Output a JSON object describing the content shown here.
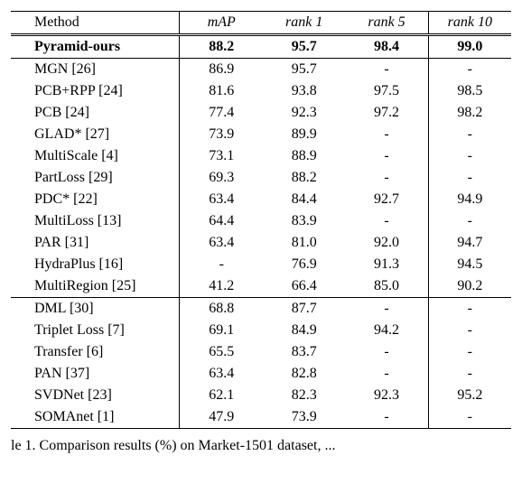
{
  "header": {
    "method": "Method",
    "map": "mAP",
    "r1": "rank 1",
    "r5": "rank 5",
    "r10": "rank 10"
  },
  "groups": [
    {
      "rows": [
        {
          "method": "Pyramid-ours",
          "map": "88.2",
          "r1": "95.7",
          "r5": "98.4",
          "r10": "99.0",
          "bold": true
        }
      ]
    },
    {
      "rows": [
        {
          "method": "MGN [26]",
          "map": "86.9",
          "r1": "95.7",
          "r5": "-",
          "r10": "-"
        },
        {
          "method": "PCB+RPP [24]",
          "map": "81.6",
          "r1": "93.8",
          "r5": "97.5",
          "r10": "98.5"
        },
        {
          "method": "PCB [24]",
          "map": "77.4",
          "r1": "92.3",
          "r5": "97.2",
          "r10": "98.2"
        },
        {
          "method": "GLAD* [27]",
          "map": "73.9",
          "r1": "89.9",
          "r5": "-",
          "r10": "-"
        },
        {
          "method": "MultiScale [4]",
          "map": "73.1",
          "r1": "88.9",
          "r5": "-",
          "r10": "-"
        },
        {
          "method": "PartLoss [29]",
          "map": "69.3",
          "r1": "88.2",
          "r5": "-",
          "r10": "-"
        },
        {
          "method": "PDC* [22]",
          "map": "63.4",
          "r1": "84.4",
          "r5": "92.7",
          "r10": "94.9"
        },
        {
          "method": "MultiLoss [13]",
          "map": "64.4",
          "r1": "83.9",
          "r5": "-",
          "r10": "-"
        },
        {
          "method": "PAR [31]",
          "map": "63.4",
          "r1": "81.0",
          "r5": "92.0",
          "r10": "94.7"
        },
        {
          "method": "HydraPlus [16]",
          "map": "-",
          "r1": "76.9",
          "r5": "91.3",
          "r10": "94.5"
        },
        {
          "method": "MultiRegion [25]",
          "map": "41.2",
          "r1": "66.4",
          "r5": "85.0",
          "r10": "90.2"
        }
      ]
    },
    {
      "rows": [
        {
          "method": "DML [30]",
          "map": "68.8",
          "r1": "87.7",
          "r5": "-",
          "r10": "-"
        },
        {
          "method": "Triplet Loss [7]",
          "map": "69.1",
          "r1": "84.9",
          "r5": "94.2",
          "r10": "-"
        },
        {
          "method": "Transfer [6]",
          "map": "65.5",
          "r1": "83.7",
          "r5": "-",
          "r10": "-"
        },
        {
          "method": "PAN [37]",
          "map": "63.4",
          "r1": "82.8",
          "r5": "-",
          "r10": "-"
        },
        {
          "method": "SVDNet [23]",
          "map": "62.1",
          "r1": "82.3",
          "r5": "92.3",
          "r10": "95.2"
        },
        {
          "method": "SOMAnet [1]",
          "map": "47.9",
          "r1": "73.9",
          "r5": "-",
          "r10": "-"
        }
      ]
    }
  ],
  "caption_partial": "le 1. Comparison results (%) on Market-1501 dataset, ..."
}
